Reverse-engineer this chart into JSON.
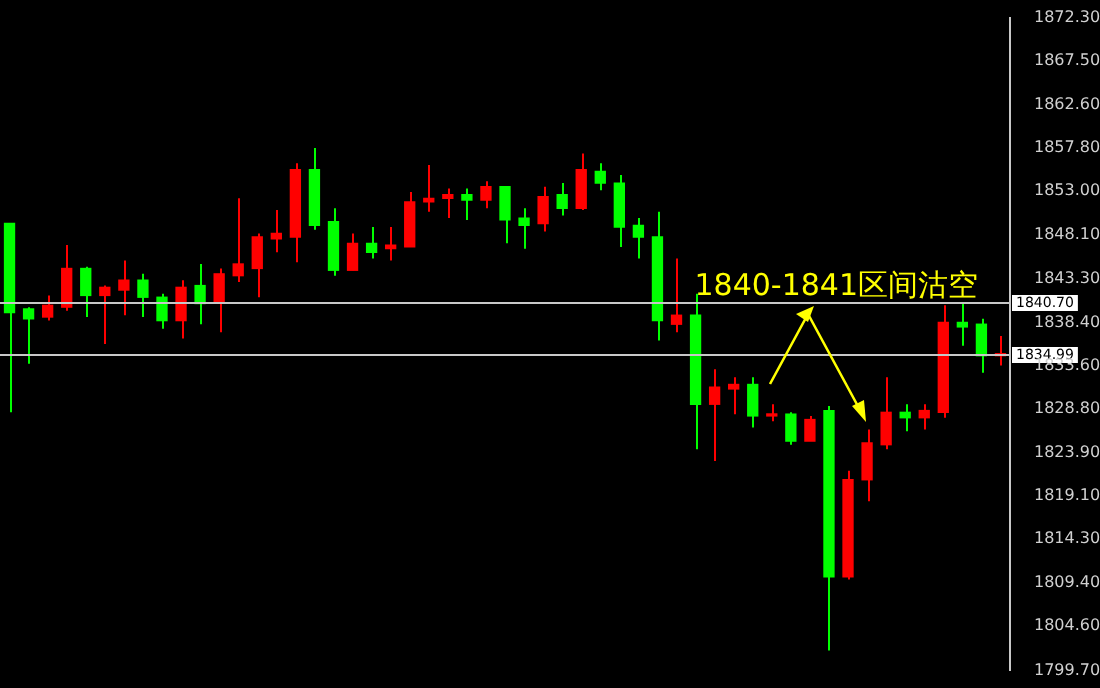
{
  "chart_data": {
    "type": "candlestick",
    "categories": [
      null,
      null,
      null,
      null,
      null,
      null,
      null,
      null,
      null,
      null,
      null,
      null,
      null,
      null,
      null,
      null,
      null,
      null,
      null,
      null,
      null,
      null,
      null,
      null,
      null,
      null,
      null,
      null,
      null,
      null,
      null,
      null,
      null,
      null,
      null,
      null,
      null,
      null,
      null,
      null,
      null,
      null,
      null,
      null,
      null,
      null,
      null,
      null,
      null,
      null,
      null,
      null,
      null
    ],
    "ohlc": [
      [
        1849.4,
        1849.4,
        1828.4,
        1839.5
      ],
      [
        1839.9,
        1840.1,
        1833.8,
        1838.8
      ],
      [
        1839.0,
        1841.4,
        1838.6,
        1840.3
      ],
      [
        1840.1,
        1847.0,
        1839.7,
        1844.4
      ],
      [
        1844.4,
        1844.6,
        1839.0,
        1841.4
      ],
      [
        1841.4,
        1842.5,
        1836.0,
        1842.3
      ],
      [
        1842.0,
        1845.3,
        1839.2,
        1843.1
      ],
      [
        1843.1,
        1843.8,
        1839.0,
        1841.2
      ],
      [
        1841.2,
        1841.6,
        1837.7,
        1838.6
      ],
      [
        1838.6,
        1843.1,
        1836.6,
        1842.3
      ],
      [
        1842.5,
        1844.9,
        1838.2,
        1840.5
      ],
      [
        1840.7,
        1844.4,
        1837.3,
        1843.8
      ],
      [
        1843.6,
        1852.2,
        1842.9,
        1844.9
      ],
      [
        1844.4,
        1848.3,
        1841.2,
        1847.9
      ],
      [
        1847.7,
        1850.9,
        1846.2,
        1848.3
      ],
      [
        1847.9,
        1856.1,
        1845.1,
        1855.4
      ],
      [
        1855.4,
        1857.8,
        1848.7,
        1849.2
      ],
      [
        1849.6,
        1851.1,
        1843.6,
        1844.2
      ],
      [
        1844.2,
        1848.3,
        1844.2,
        1847.2
      ],
      [
        1847.2,
        1849.0,
        1845.5,
        1846.2
      ],
      [
        1846.6,
        1849.0,
        1845.3,
        1847.0
      ],
      [
        1846.8,
        1852.9,
        1846.8,
        1851.8
      ],
      [
        1851.8,
        1855.9,
        1850.7,
        1852.2
      ],
      [
        1852.2,
        1853.3,
        1850.0,
        1852.6
      ],
      [
        1852.6,
        1853.3,
        1849.8,
        1852.0
      ],
      [
        1852.0,
        1854.1,
        1851.1,
        1853.5
      ],
      [
        1853.5,
        1853.5,
        1847.2,
        1849.8
      ],
      [
        1850.0,
        1851.1,
        1846.6,
        1849.2
      ],
      [
        1849.4,
        1853.5,
        1848.5,
        1852.4
      ],
      [
        1852.6,
        1853.9,
        1850.3,
        1851.1
      ],
      [
        1851.1,
        1857.2,
        1850.9,
        1855.4
      ],
      [
        1855.2,
        1856.1,
        1853.1,
        1853.9
      ],
      [
        1853.9,
        1854.8,
        1846.8,
        1849.0
      ],
      [
        1849.2,
        1850.0,
        1845.5,
        1847.9
      ],
      [
        1847.9,
        1850.7,
        1836.4,
        1838.6
      ],
      [
        1838.2,
        1845.5,
        1837.3,
        1839.2
      ],
      [
        1839.2,
        1841.6,
        1824.3,
        1829.3
      ],
      [
        1829.3,
        1833.2,
        1823.0,
        1831.2
      ],
      [
        1831.0,
        1832.3,
        1828.2,
        1831.5
      ],
      [
        1831.5,
        1832.3,
        1826.7,
        1828.0
      ],
      [
        1828.0,
        1829.3,
        1827.4,
        1828.2
      ],
      [
        1828.2,
        1828.4,
        1824.8,
        1825.2
      ],
      [
        1825.2,
        1828.0,
        1825.2,
        1827.6
      ],
      [
        1828.6,
        1829.1,
        1801.9,
        1810.1
      ],
      [
        1810.1,
        1821.9,
        1809.8,
        1820.9
      ],
      [
        1820.9,
        1826.5,
        1818.5,
        1825.0
      ],
      [
        1824.8,
        1832.3,
        1824.3,
        1828.4
      ],
      [
        1828.4,
        1829.3,
        1826.3,
        1827.8
      ],
      [
        1827.8,
        1829.3,
        1826.5,
        1828.6
      ],
      [
        1828.4,
        1840.3,
        1827.8,
        1838.4
      ],
      [
        1838.4,
        1840.5,
        1835.8,
        1837.9
      ],
      [
        1838.2,
        1838.8,
        1832.8,
        1834.7
      ],
      [
        1834.7,
        1836.9,
        1833.6,
        1834.9
      ]
    ],
    "colors": [
      "#00ff00",
      "#00ff00",
      "#ff0000",
      "#ff0000",
      "#00ff00",
      "#ff0000",
      "#ff0000",
      "#00ff00",
      "#00ff00",
      "#ff0000",
      "#00ff00",
      "#ff0000",
      "#ff0000",
      "#ff0000",
      "#ff0000",
      "#ff0000",
      "#00ff00",
      "#00ff00",
      "#ff0000",
      "#00ff00",
      "#ff0000",
      "#ff0000",
      "#ff0000",
      "#ff0000",
      "#00ff00",
      "#ff0000",
      "#00ff00",
      "#00ff00",
      "#ff0000",
      "#00ff00",
      "#ff0000",
      "#00ff00",
      "#00ff00",
      "#00ff00",
      "#00ff00",
      "#ff0000",
      "#00ff00",
      "#ff0000",
      "#ff0000",
      "#00ff00",
      "#ff0000",
      "#00ff00",
      "#ff0000",
      "#00ff00",
      "#ff0000",
      "#ff0000",
      "#ff0000",
      "#00ff00",
      "#ff0000",
      "#ff0000",
      "#00ff00",
      "#00ff00",
      "#ff0000"
    ],
    "ylim": [
      1799.7,
      1872.3
    ],
    "yticks": [
      {
        "value": 1799.7,
        "label": "1799.70"
      },
      {
        "value": 1804.6,
        "label": "1804.60"
      },
      {
        "value": 1809.4,
        "label": "1809.40"
      },
      {
        "value": 1814.3,
        "label": "1814.30"
      },
      {
        "value": 1819.1,
        "label": "1819.10"
      },
      {
        "value": 1823.9,
        "label": "1823.90"
      },
      {
        "value": 1828.8,
        "label": "1828.80"
      },
      {
        "value": 1833.6,
        "label": "1833.60"
      },
      {
        "value": 1838.4,
        "label": "1838.40"
      },
      {
        "value": 1843.3,
        "label": "1843.30"
      },
      {
        "value": 1848.1,
        "label": "1848.10"
      },
      {
        "value": 1853.0,
        "label": "1853.00"
      },
      {
        "value": 1857.8,
        "label": "1857.80"
      },
      {
        "value": 1862.6,
        "label": "1862.60"
      },
      {
        "value": 1867.5,
        "label": "1867.50"
      },
      {
        "value": 1872.3,
        "label": "1872.30"
      }
    ],
    "tick_labels": "y",
    "grid": false,
    "legend": false,
    "ref_lines": [
      {
        "axis": "y",
        "value": 1840.7,
        "label": "1840.70",
        "color": "#c8c8c8"
      },
      {
        "axis": "y",
        "value": 1834.99,
        "label": "1834.99",
        "color": "#c8c8c8"
      }
    ],
    "annotations": [
      "1840-1841区间沽空"
    ]
  }
}
